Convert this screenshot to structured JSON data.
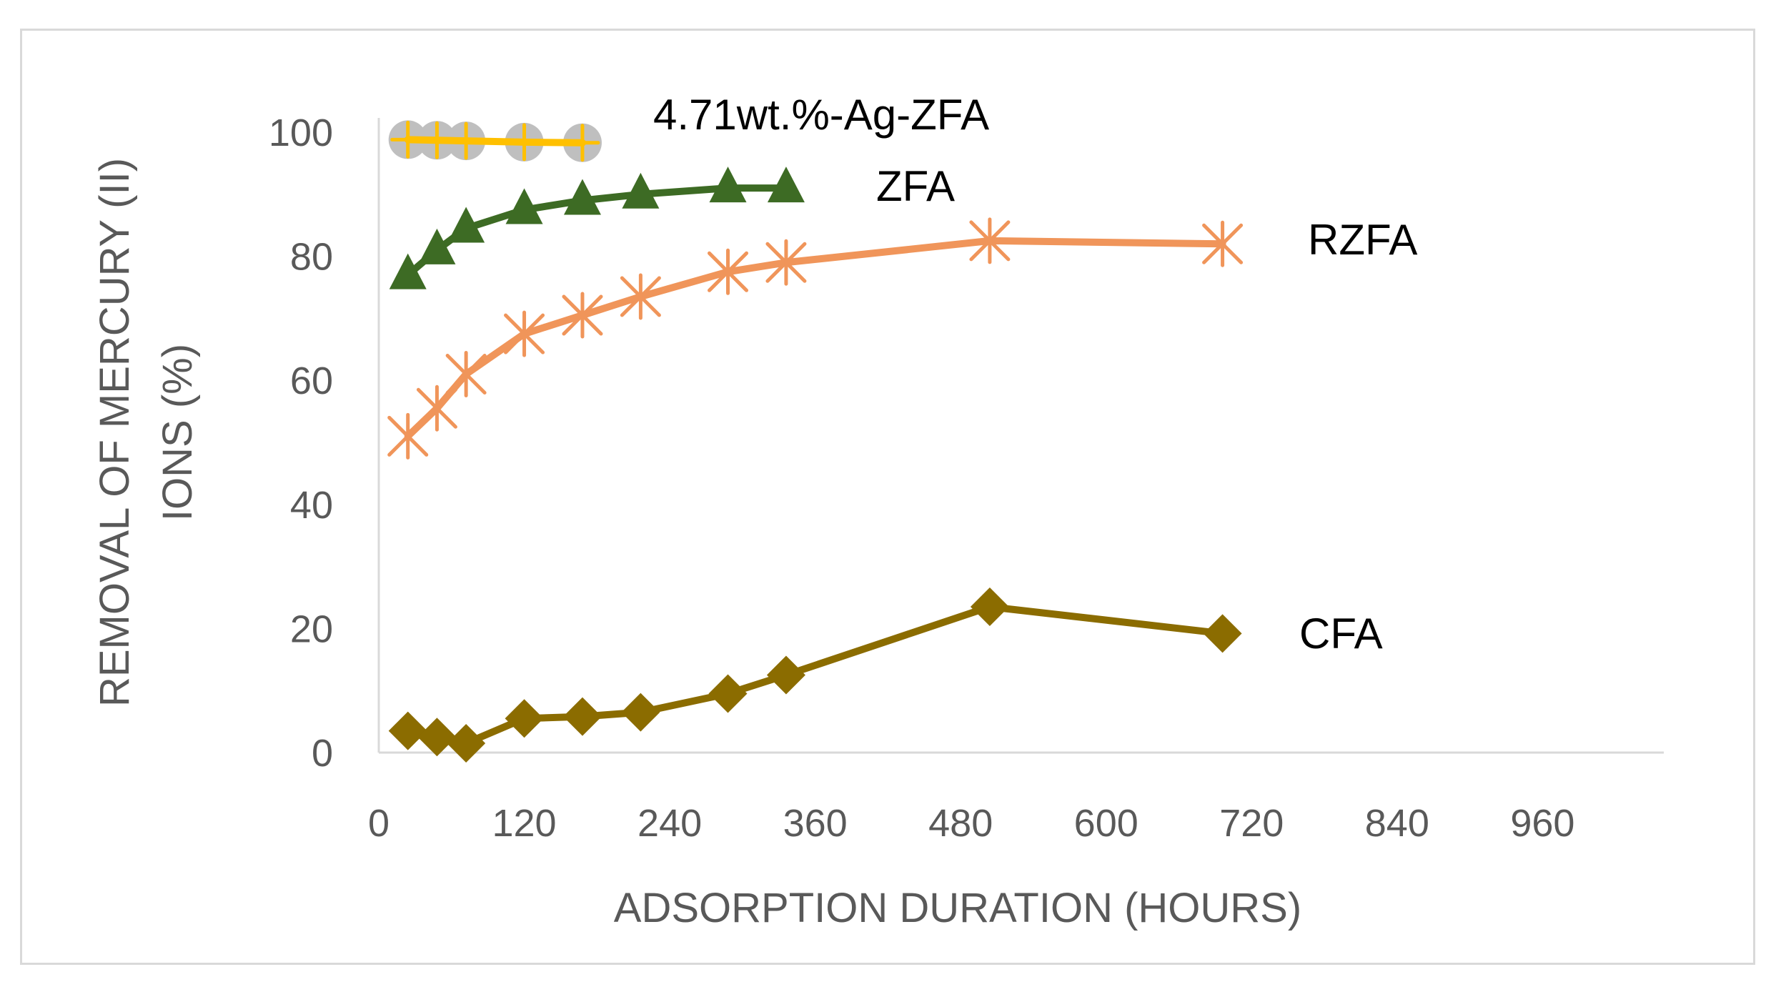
{
  "chart_data": {
    "type": "line",
    "title": "",
    "xlabel": "ADSORPTION DURATION (HOURS)",
    "ylabel_lines": [
      "REMOVAL OF MERCURY (II)",
      "IONS (%)"
    ],
    "xlim": [
      0,
      1060
    ],
    "ylim": [
      0,
      100
    ],
    "xticks": [
      0,
      120,
      240,
      360,
      480,
      600,
      720,
      840,
      960
    ],
    "yticks": [
      0,
      20,
      40,
      60,
      80,
      100
    ],
    "grid": false,
    "series": [
      {
        "name": "CFA",
        "label": "CFA",
        "color": "#8B6C00",
        "marker": "diamond",
        "x": [
          24,
          48,
          72,
          120,
          168,
          216,
          288,
          336,
          504,
          696
        ],
        "y": [
          3.5,
          2.5,
          1.5,
          5.5,
          5.8,
          6.5,
          9.5,
          12.5,
          23.5,
          19.2
        ]
      },
      {
        "name": "RZFA",
        "label": "RZFA",
        "color": "#F0955A",
        "marker": "asterisk",
        "x": [
          24,
          48,
          72,
          120,
          168,
          216,
          288,
          336,
          504,
          696
        ],
        "y": [
          51,
          55.5,
          61,
          67.5,
          70.5,
          73.5,
          77.5,
          79,
          82.5,
          82
        ]
      },
      {
        "name": "ZFA",
        "label": "ZFA",
        "color": "#3D6B24",
        "marker": "triangle",
        "x": [
          24,
          48,
          72,
          120,
          168,
          216,
          288,
          336
        ],
        "y": [
          77,
          81,
          84.5,
          87.5,
          89,
          90,
          91,
          91
        ]
      },
      {
        "name": "4.71wt.%-Ag-ZFA",
        "label": "4.71wt.%-Ag-ZFA",
        "color": "#FFC000",
        "marker": "plus",
        "marker_bg": "#BFBFBF",
        "x": [
          24,
          48,
          72,
          120,
          168
        ],
        "y": [
          98.8,
          98.7,
          98.6,
          98.4,
          98.3
        ]
      }
    ]
  }
}
